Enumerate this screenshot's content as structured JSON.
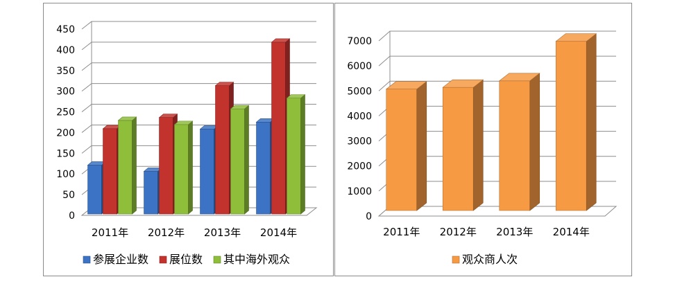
{
  "chart_data": [
    {
      "type": "bar",
      "variant": "3d-clustered-column",
      "categories": [
        "2011年",
        "2012年",
        "2013年",
        "2014年"
      ],
      "series": [
        {
          "name": "参展企业数",
          "values": [
            118,
            103,
            205,
            222
          ],
          "color": "#3c73c4"
        },
        {
          "name": "展位数",
          "values": [
            206,
            233,
            310,
            415
          ],
          "color": "#c3332e"
        },
        {
          "name": "其中海外观众",
          "values": [
            226,
            216,
            254,
            280
          ],
          "color": "#8fbe3a"
        }
      ],
      "yticks": [
        "0",
        "50",
        "100",
        "150",
        "200",
        "250",
        "300",
        "350",
        "400",
        "450"
      ],
      "ylim": [
        0,
        450
      ],
      "grid": true,
      "legend": "bottom"
    },
    {
      "type": "bar",
      "variant": "3d-column",
      "categories": [
        "2011年",
        "2012年",
        "2013年",
        "2014年"
      ],
      "series": [
        {
          "name": "观众商人次",
          "values": [
            4850,
            4920,
            5180,
            6760
          ],
          "color": "#f79a44"
        }
      ],
      "yticks": [
        "0",
        "1000",
        "2000",
        "3000",
        "4000",
        "5000",
        "6000",
        "7000"
      ],
      "ylim": [
        0,
        7000
      ],
      "grid": true,
      "legend": "bottom"
    }
  ]
}
